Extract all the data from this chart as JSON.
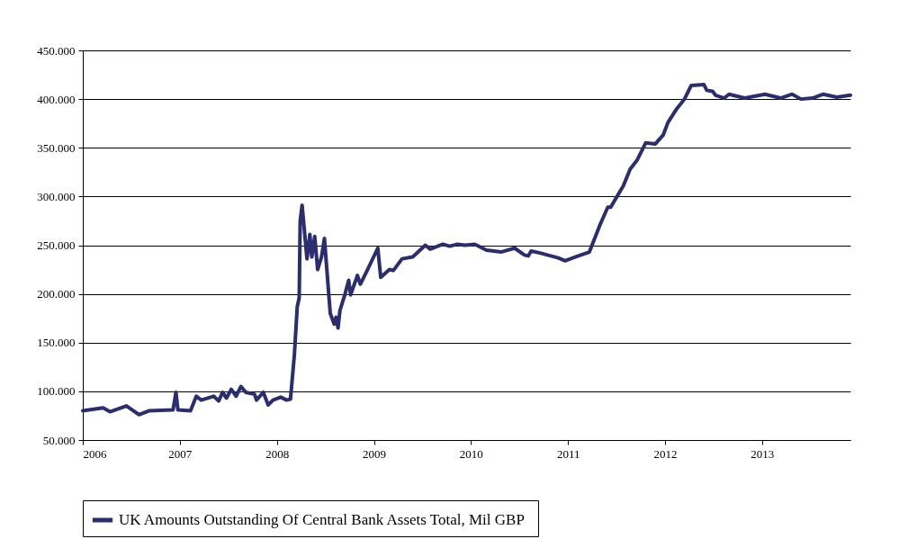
{
  "chart_data": {
    "type": "line",
    "x": [
      2006.0,
      2006.21,
      2006.28,
      2006.45,
      2006.58,
      2006.68,
      2006.93,
      2006.96,
      2006.98,
      2007.11,
      2007.17,
      2007.22,
      2007.35,
      2007.4,
      2007.44,
      2007.48,
      2007.53,
      2007.58,
      2007.63,
      2007.68,
      2007.77,
      2007.79,
      2007.86,
      2007.91,
      2007.96,
      2008.04,
      2008.1,
      2008.14,
      2008.18,
      2008.21,
      2008.23,
      2008.24,
      2008.26,
      2008.31,
      2008.34,
      2008.36,
      2008.39,
      2008.42,
      2008.46,
      2008.49,
      2008.55,
      2008.59,
      2008.61,
      2008.63,
      2008.65,
      2008.7,
      2008.74,
      2008.76,
      2008.83,
      2008.86,
      2008.93,
      2009.04,
      2009.07,
      2009.16,
      2009.2,
      2009.29,
      2009.4,
      2009.53,
      2009.58,
      2009.71,
      2009.78,
      2009.86,
      2009.94,
      2010.04,
      2010.16,
      2010.31,
      2010.45,
      2010.55,
      2010.59,
      2010.62,
      2010.71,
      2010.9,
      2010.97,
      2011.08,
      2011.22,
      2011.33,
      2011.41,
      2011.44,
      2011.57,
      2011.64,
      2011.71,
      2011.8,
      2011.9,
      2011.98,
      2012.03,
      2012.12,
      2012.2,
      2012.27,
      2012.4,
      2012.43,
      2012.49,
      2012.52,
      2012.61,
      2012.66,
      2012.82,
      2013.03,
      2013.19,
      2013.31,
      2013.4,
      2013.52,
      2013.63,
      2013.77,
      2013.91
    ],
    "series": [
      {
        "name": "UK  Amounts Outstanding Of Central Bank Assets Total, Mil GBP",
        "color": "#2b2d6e",
        "values": [
          80000,
          83000,
          79000,
          85000,
          76000,
          80000,
          81000,
          99000,
          81000,
          80000,
          95000,
          91000,
          95000,
          90000,
          99000,
          93000,
          102000,
          95000,
          105000,
          99000,
          97000,
          91000,
          99000,
          86000,
          91000,
          94000,
          91000,
          92000,
          137000,
          187000,
          196000,
          275000,
          291000,
          236000,
          261000,
          238000,
          259000,
          225000,
          238000,
          257000,
          180000,
          169000,
          176000,
          165000,
          183000,
          199000,
          214000,
          199000,
          219000,
          210000,
          224000,
          247000,
          217000,
          225000,
          224000,
          236000,
          238000,
          250000,
          246000,
          251000,
          249000,
          251000,
          250000,
          251000,
          245000,
          243000,
          247000,
          240000,
          239000,
          244000,
          242000,
          237000,
          234000,
          238000,
          243000,
          271000,
          289000,
          289000,
          311000,
          328000,
          337000,
          355000,
          354000,
          363000,
          376000,
          390000,
          400000,
          414000,
          415000,
          409000,
          408000,
          404000,
          401000,
          405000,
          401000,
          405000,
          401000,
          405000,
          400000,
          401000,
          405000,
          402000,
          404000
        ]
      }
    ],
    "xlim": [
      2006,
      2013.91
    ],
    "xticks": [
      2006,
      2007,
      2008,
      2009,
      2010,
      2011,
      2012,
      2013
    ],
    "ylim": [
      50000,
      450000
    ],
    "yticks": [
      {
        "value": 50000,
        "label": "50.000"
      },
      {
        "value": 100000,
        "label": "100.000"
      },
      {
        "value": 150000,
        "label": "150.000"
      },
      {
        "value": 200000,
        "label": "200.000"
      },
      {
        "value": 250000,
        "label": "250.000"
      },
      {
        "value": 300000,
        "label": "300.000"
      },
      {
        "value": 350000,
        "label": "350.000"
      },
      {
        "value": 400000,
        "label": "400.000"
      },
      {
        "value": 450000,
        "label": "450.000"
      }
    ],
    "grid": "y",
    "legend": "bottom",
    "marker": "none",
    "line_style": "solid"
  }
}
